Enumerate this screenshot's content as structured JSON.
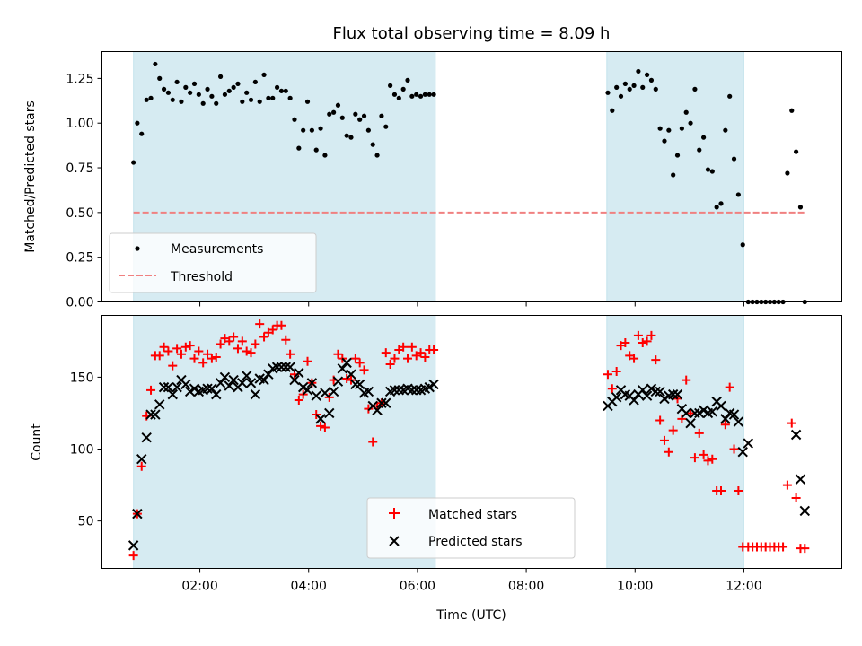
{
  "chart_data": [
    {
      "type": "scatter",
      "title": "Flux total observing time = 8.09 h",
      "xlabel": "",
      "ylabel": "Matched/Predicted stars",
      "xlim": [
        0.2,
        13.8
      ],
      "ylim": [
        0.0,
        1.4
      ],
      "yticks": [
        0.0,
        0.25,
        0.5,
        0.75,
        1.0,
        1.25
      ],
      "ytick_labels": [
        "0.00",
        "0.25",
        "0.50",
        "0.75",
        "1.00",
        "1.25"
      ],
      "xticks": [
        2,
        4,
        6,
        8,
        10,
        12
      ],
      "shaded_intervals": [
        [
          0.78,
          6.33
        ],
        [
          9.48,
          12.0
        ]
      ],
      "legend": {
        "position": "lower-left",
        "entries": [
          "Measurements",
          "Threshold"
        ]
      },
      "series": [
        {
          "name": "Measurements",
          "style": "dot",
          "color": "#000000",
          "x": [
            0.78,
            0.85,
            0.93,
            1.02,
            1.1,
            1.18,
            1.26,
            1.34,
            1.42,
            1.5,
            1.58,
            1.66,
            1.74,
            1.82,
            1.9,
            1.98,
            2.06,
            2.14,
            2.22,
            2.3,
            2.38,
            2.46,
            2.54,
            2.62,
            2.7,
            2.78,
            2.86,
            2.94,
            3.02,
            3.1,
            3.18,
            3.26,
            3.34,
            3.42,
            3.5,
            3.58,
            3.66,
            3.74,
            3.82,
            3.9,
            3.98,
            4.06,
            4.14,
            4.22,
            4.3,
            4.38,
            4.46,
            4.54,
            4.62,
            4.7,
            4.78,
            4.86,
            4.94,
            5.02,
            5.1,
            5.18,
            5.26,
            5.34,
            5.42,
            5.5,
            5.58,
            5.66,
            5.74,
            5.82,
            5.9,
            5.98,
            6.06,
            6.14,
            6.22,
            6.3,
            9.5,
            9.58,
            9.66,
            9.74,
            9.82,
            9.9,
            9.98,
            10.06,
            10.14,
            10.22,
            10.3,
            10.38,
            10.46,
            10.54,
            10.62,
            10.7,
            10.78,
            10.86,
            10.94,
            11.02,
            11.1,
            11.18,
            11.26,
            11.34,
            11.42,
            11.5,
            11.58,
            11.66,
            11.74,
            11.82,
            11.9,
            11.98,
            12.08,
            12.16,
            12.24,
            12.32,
            12.4,
            12.48,
            12.56,
            12.64,
            12.72,
            12.8,
            12.88,
            12.96,
            13.04,
            13.12
          ],
          "y": [
            0.78,
            1.0,
            0.94,
            1.13,
            1.14,
            1.33,
            1.25,
            1.19,
            1.17,
            1.13,
            1.23,
            1.12,
            1.2,
            1.17,
            1.22,
            1.16,
            1.11,
            1.19,
            1.15,
            1.11,
            1.26,
            1.16,
            1.18,
            1.2,
            1.22,
            1.12,
            1.17,
            1.13,
            1.23,
            1.12,
            1.27,
            1.14,
            1.14,
            1.2,
            1.18,
            1.18,
            1.14,
            1.02,
            0.86,
            0.96,
            1.12,
            0.96,
            0.85,
            0.97,
            0.82,
            1.05,
            1.06,
            1.1,
            1.03,
            0.93,
            0.92,
            1.05,
            1.02,
            1.04,
            0.96,
            0.88,
            0.82,
            1.04,
            0.98,
            1.21,
            1.16,
            1.14,
            1.19,
            1.24,
            1.15,
            1.16,
            1.15,
            1.16,
            1.16,
            1.16,
            1.17,
            1.07,
            1.2,
            1.15,
            1.22,
            1.19,
            1.21,
            1.29,
            1.2,
            1.27,
            1.24,
            1.19,
            0.97,
            0.9,
            0.96,
            0.71,
            0.82,
            0.97,
            1.06,
            1.0,
            1.19,
            0.85,
            0.92,
            0.74,
            0.73,
            0.53,
            0.55,
            0.96,
            1.15,
            0.8,
            0.6,
            0.32,
            0.0,
            0.0,
            0.0,
            0.0,
            0.0,
            0.0,
            0.0,
            0.0,
            0.0,
            0.72,
            1.07,
            0.84,
            0.53,
            0.0
          ]
        },
        {
          "name": "Threshold",
          "style": "dashed-line",
          "color": "#f08080",
          "x": [
            0.78,
            13.12
          ],
          "y": [
            0.5,
            0.5
          ]
        }
      ]
    },
    {
      "type": "scatter",
      "title": "",
      "xlabel": "Time (UTC)",
      "ylabel": "Count",
      "xlim": [
        0.2,
        13.8
      ],
      "ylim": [
        17,
        193
      ],
      "yticks": [
        50,
        100,
        150
      ],
      "ytick_labels": [
        "50",
        "100",
        "150"
      ],
      "xticks": [
        2,
        4,
        6,
        8,
        10,
        12
      ],
      "xtick_labels": [
        "02:00",
        "04:00",
        "06:00",
        "08:00",
        "10:00",
        "12:00"
      ],
      "shaded_intervals": [
        [
          0.78,
          6.33
        ],
        [
          9.48,
          12.0
        ]
      ],
      "legend": {
        "position": "lower-center",
        "entries": [
          "Matched stars",
          "Predicted stars"
        ]
      },
      "series": [
        {
          "name": "Matched stars",
          "style": "plus",
          "color": "#ff0000",
          "x": [
            0.78,
            0.85,
            0.93,
            1.02,
            1.1,
            1.18,
            1.26,
            1.34,
            1.42,
            1.5,
            1.58,
            1.66,
            1.74,
            1.82,
            1.9,
            1.98,
            2.06,
            2.14,
            2.22,
            2.3,
            2.38,
            2.46,
            2.54,
            2.62,
            2.7,
            2.78,
            2.86,
            2.94,
            3.02,
            3.1,
            3.18,
            3.26,
            3.34,
            3.42,
            3.5,
            3.58,
            3.66,
            3.74,
            3.82,
            3.9,
            3.98,
            4.06,
            4.14,
            4.22,
            4.3,
            4.38,
            4.46,
            4.54,
            4.62,
            4.7,
            4.78,
            4.86,
            4.94,
            5.02,
            5.1,
            5.18,
            5.26,
            5.34,
            5.42,
            5.5,
            5.58,
            5.66,
            5.74,
            5.82,
            5.9,
            5.98,
            6.06,
            6.14,
            6.22,
            6.3,
            9.5,
            9.58,
            9.66,
            9.74,
            9.82,
            9.9,
            9.98,
            10.06,
            10.14,
            10.22,
            10.3,
            10.38,
            10.46,
            10.54,
            10.62,
            10.7,
            10.78,
            10.86,
            10.94,
            11.02,
            11.1,
            11.18,
            11.26,
            11.34,
            11.42,
            11.5,
            11.58,
            11.66,
            11.74,
            11.82,
            11.9,
            11.98,
            12.08,
            12.16,
            12.24,
            12.32,
            12.4,
            12.48,
            12.56,
            12.64,
            12.72,
            12.8,
            12.88,
            12.96,
            13.04,
            13.12
          ],
          "y": [
            26,
            55,
            88,
            123,
            141,
            165,
            165,
            171,
            168,
            158,
            170,
            166,
            171,
            172,
            163,
            168,
            160,
            166,
            163,
            164,
            173,
            177,
            175,
            178,
            170,
            175,
            168,
            167,
            173,
            187,
            178,
            181,
            183,
            186,
            186,
            176,
            166,
            152,
            134,
            138,
            161,
            146,
            124,
            116,
            115,
            136,
            148,
            166,
            163,
            149,
            148,
            163,
            160,
            155,
            128,
            105,
            130,
            132,
            167,
            159,
            163,
            169,
            171,
            163,
            171,
            165,
            167,
            164,
            169,
            169,
            152,
            142,
            154,
            172,
            174,
            165,
            163,
            179,
            174,
            175,
            179,
            162,
            120,
            106,
            98,
            113,
            135,
            121,
            148,
            125,
            94,
            111,
            96,
            92,
            93,
            71,
            71,
            117,
            143,
            100,
            71,
            32,
            32,
            32,
            32,
            32,
            32,
            32,
            32,
            32,
            32,
            75,
            118,
            66,
            31,
            31
          ]
        },
        {
          "name": "Predicted stars",
          "style": "x",
          "color": "#000000",
          "x": [
            0.78,
            0.85,
            0.93,
            1.02,
            1.1,
            1.18,
            1.26,
            1.34,
            1.42,
            1.5,
            1.58,
            1.66,
            1.74,
            1.82,
            1.9,
            1.98,
            2.06,
            2.14,
            2.22,
            2.3,
            2.38,
            2.46,
            2.54,
            2.62,
            2.7,
            2.78,
            2.86,
            2.94,
            3.02,
            3.1,
            3.18,
            3.26,
            3.34,
            3.42,
            3.5,
            3.58,
            3.66,
            3.74,
            3.82,
            3.9,
            3.98,
            4.06,
            4.14,
            4.22,
            4.3,
            4.38,
            4.46,
            4.54,
            4.62,
            4.7,
            4.78,
            4.86,
            4.94,
            5.02,
            5.1,
            5.18,
            5.26,
            5.34,
            5.42,
            5.5,
            5.58,
            5.66,
            5.74,
            5.82,
            5.9,
            5.98,
            6.06,
            6.14,
            6.22,
            6.3,
            9.5,
            9.58,
            9.66,
            9.74,
            9.82,
            9.9,
            9.98,
            10.06,
            10.14,
            10.22,
            10.3,
            10.38,
            10.46,
            10.54,
            10.62,
            10.7,
            10.78,
            10.86,
            10.94,
            11.02,
            11.1,
            11.18,
            11.26,
            11.34,
            11.42,
            11.5,
            11.58,
            11.66,
            11.74,
            11.82,
            11.9,
            11.98,
            12.08,
            12.96,
            13.04,
            13.12
          ],
          "y": [
            33,
            55,
            93,
            108,
            124,
            124,
            131,
            143,
            143,
            138,
            143,
            148,
            145,
            140,
            142,
            140,
            141,
            142,
            142,
            138,
            146,
            150,
            144,
            148,
            143,
            146,
            151,
            146,
            138,
            149,
            148,
            152,
            156,
            157,
            157,
            157,
            157,
            148,
            153,
            143,
            141,
            146,
            137,
            121,
            139,
            125,
            140,
            147,
            156,
            160,
            152,
            145,
            145,
            139,
            140,
            130,
            127,
            132,
            132,
            140,
            141,
            141,
            141,
            142,
            141,
            141,
            141,
            142,
            143,
            145,
            130,
            133,
            136,
            141,
            138,
            137,
            134,
            138,
            141,
            137,
            142,
            140,
            140,
            135,
            137,
            138,
            138,
            128,
            125,
            118,
            125,
            125,
            127,
            125,
            126,
            133,
            130,
            121,
            125,
            124,
            119,
            98,
            104,
            110,
            79,
            57
          ]
        }
      ]
    }
  ]
}
